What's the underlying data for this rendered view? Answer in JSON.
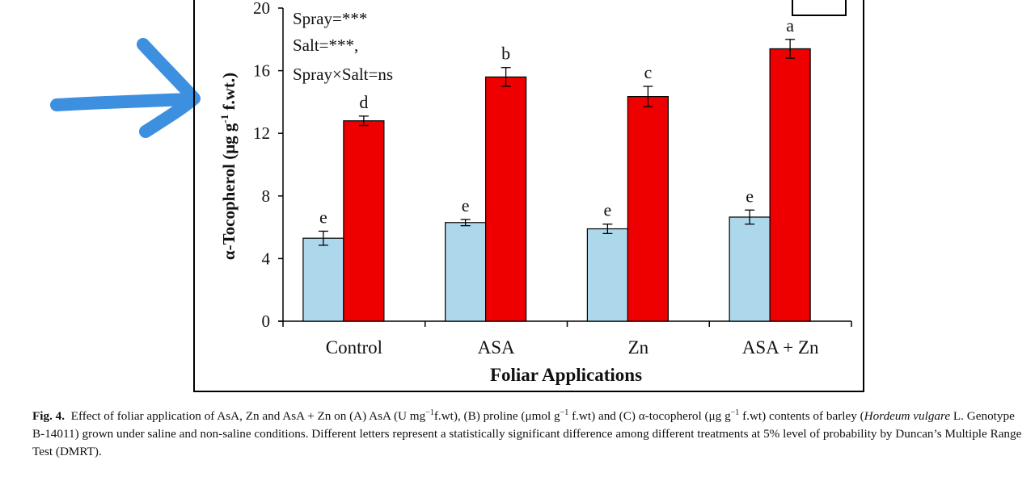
{
  "chart_data": {
    "type": "bar",
    "categories": [
      "Control",
      "ASA",
      "Zn",
      "ASA + Zn"
    ],
    "series": [
      {
        "color": "#ADD8EC",
        "values": [
          5.3,
          6.3,
          5.9,
          6.65
        ],
        "errors": [
          0.45,
          0.2,
          0.3,
          0.45
        ],
        "letters": [
          "e",
          "e",
          "e",
          "e"
        ]
      },
      {
        "color": "#EE0000",
        "values": [
          12.8,
          15.6,
          14.35,
          17.4
        ],
        "errors": [
          0.3,
          0.6,
          0.65,
          0.6
        ],
        "letters": [
          "d",
          "b",
          "c",
          "a"
        ]
      }
    ],
    "xlabel": "Foliar Applications",
    "ylabel_parts": [
      "α-Tocopherol (μg g",
      "-1",
      " f.wt.)"
    ],
    "yticks": [
      0,
      4,
      8,
      12,
      16,
      20
    ],
    "ylim": [
      0,
      20
    ],
    "stats": [
      "Spray=***",
      "Salt=***,",
      "Spray×Salt=ns"
    ],
    "annotation_arrow_color": "#3D8FE0"
  },
  "caption": {
    "label": "Fig. 4.",
    "text1": "Effect of foliar application of AsA, Zn and AsA + Zn on (A) AsA (U mg",
    "sup1": "−1",
    "text2": "f.wt), (B) proline (μmol g",
    "sup2": "−1",
    "text3": " f.wt) and (C) α-tocopherol (μg g",
    "sup3": "−1",
    "text4": " f.wt) contents of barley (",
    "italic": "Hordeum vulgare",
    "text5": " L. Genotype B-14011) grown under saline and non-saline conditions. Different letters represent a statistically significant difference among different treatments at 5% level of probability by Duncan’s Multiple Range Test (DMRT)."
  }
}
